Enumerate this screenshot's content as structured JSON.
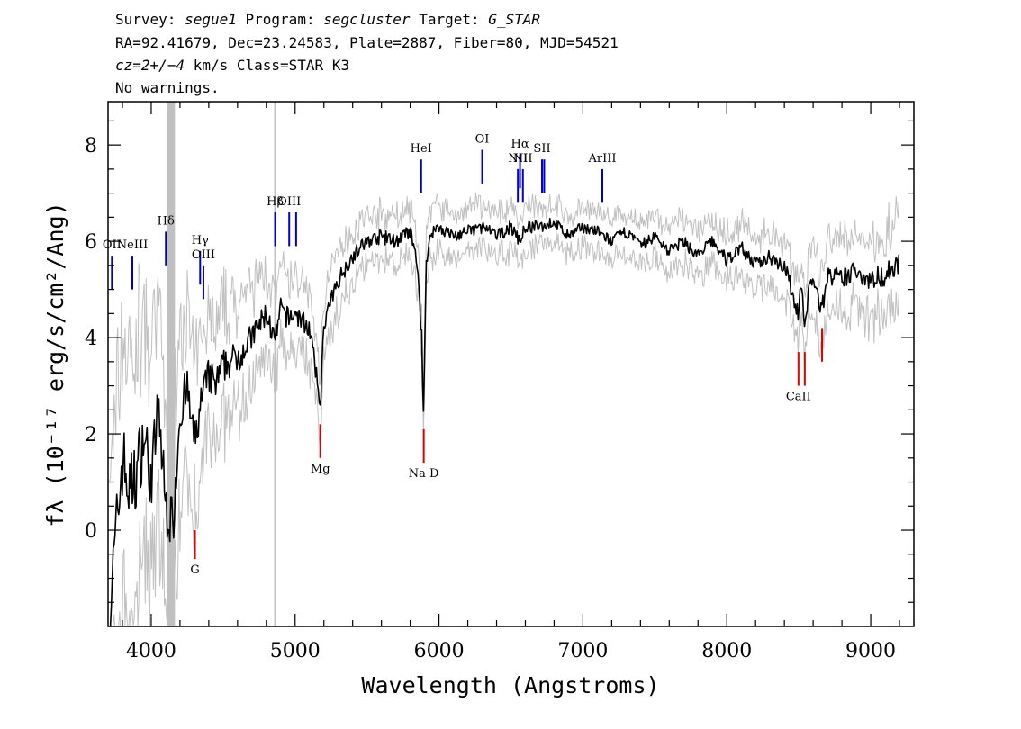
{
  "header": {
    "survey_label": "Survey:",
    "survey": "segue1",
    "program_label": "Program:",
    "program": "segcluster",
    "target_label": "Target:",
    "target": "G_STAR",
    "line2": "RA=92.41679, Dec=23.24583, Plate=2887, Fiber=80, MJD=54521",
    "cz": "cz=2+/−4",
    "cz_rest": " km/s Class=STAR K3",
    "warnings": "No warnings."
  },
  "chart_data": {
    "type": "line",
    "xlabel": "Wavelength (Angstroms)",
    "ylabel": "fλ (10⁻¹⁷ erg/s/cm²/Ang)",
    "xlim": [
      3700,
      9300
    ],
    "ylim": [
      -2.0,
      8.9
    ],
    "xticks": [
      4000,
      5000,
      6000,
      7000,
      8000,
      9000
    ],
    "yticks": [
      0,
      2,
      4,
      6,
      8
    ],
    "colors": {
      "flux": "#000000",
      "error": "#c0c0c0",
      "emission": "#0000cc",
      "absorption": "#dd0000",
      "mask": "#c0c0c0"
    },
    "masked_band": [
      4110,
      4165
    ],
    "sky_line": 4861,
    "series": [
      {
        "name": "flux",
        "x": [
          3710,
          3800,
          3850,
          3900,
          3950,
          4000,
          4050,
          4100,
          4150,
          4200,
          4250,
          4300,
          4350,
          4400,
          4450,
          4500,
          4600,
          4700,
          4800,
          4861,
          4900,
          4950,
          5000,
          5100,
          5175,
          5200,
          5300,
          5400,
          5500,
          5600,
          5700,
          5800,
          5850,
          5880,
          5893,
          5910,
          5950,
          6000,
          6100,
          6200,
          6300,
          6400,
          6500,
          6563,
          6600,
          6700,
          6800,
          6900,
          7000,
          7100,
          7200,
          7300,
          7400,
          7500,
          7600,
          7700,
          7800,
          7900,
          8000,
          8100,
          8200,
          8300,
          8400,
          8498,
          8520,
          8542,
          8580,
          8662,
          8700,
          8800,
          8900,
          9000,
          9100,
          9200
        ],
        "y": [
          -1.8,
          1.5,
          0.8,
          1.2,
          2.0,
          1.0,
          2.6,
          0.5,
          0.1,
          2.5,
          2.9,
          1.8,
          2.7,
          3.2,
          3.0,
          3.4,
          3.6,
          4.0,
          4.5,
          3.9,
          4.6,
          4.4,
          4.5,
          4.2,
          2.6,
          4.3,
          5.2,
          5.7,
          6.0,
          6.1,
          6.0,
          6.2,
          5.5,
          4.0,
          2.3,
          5.6,
          6.2,
          6.3,
          6.1,
          6.2,
          6.3,
          6.1,
          6.3,
          6.0,
          6.3,
          6.3,
          6.4,
          6.1,
          6.3,
          6.2,
          6.0,
          6.2,
          5.9,
          6.1,
          5.8,
          6.0,
          5.7,
          6.0,
          5.6,
          5.9,
          5.5,
          5.7,
          5.5,
          4.5,
          5.2,
          4.1,
          5.3,
          4.6,
          5.3,
          5.2,
          5.4,
          5.2,
          5.3,
          5.6
        ]
      },
      {
        "name": "error",
        "x": [
          3710,
          3800,
          3900,
          4000,
          4100,
          4200,
          4300,
          4400,
          4500,
          4700,
          4900,
          5100,
          5300,
          5500,
          5700,
          5900,
          6100,
          6300,
          6500,
          6700,
          6900,
          7100,
          7300,
          7500,
          7700,
          7900,
          8100,
          8300,
          8500,
          8700,
          8900,
          9100,
          9200
        ],
        "y": [
          2.5,
          2.8,
          2.6,
          2.2,
          2.0,
          1.8,
          1.5,
          1.3,
          1.2,
          1.0,
          0.8,
          0.7,
          0.6,
          0.5,
          0.5,
          0.5,
          0.45,
          0.45,
          0.45,
          0.4,
          0.4,
          0.4,
          0.4,
          0.45,
          0.45,
          0.5,
          0.5,
          0.55,
          0.6,
          0.7,
          0.75,
          0.8,
          0.9
        ]
      }
    ],
    "emission_lines": [
      {
        "label": "OII",
        "wave": 3727,
        "y_top": 5.7,
        "y_bot": 5.0,
        "label_y": 5.85
      },
      {
        "label": "NeIII",
        "wave": 3869,
        "y_top": 5.7,
        "y_bot": 5.0,
        "label_y": 5.85
      },
      {
        "label": "Hδ",
        "wave": 4102,
        "y_top": 6.2,
        "y_bot": 5.5,
        "label_y": 6.35
      },
      {
        "label": "Hγ",
        "wave": 4340,
        "y_top": 5.8,
        "y_bot": 5.1,
        "label_y": 5.95
      },
      {
        "label": "OIII",
        "wave": 4363,
        "y_top": 5.5,
        "y_bot": 4.8,
        "label_y": 5.65
      },
      {
        "label": "Hβ",
        "wave": 4861,
        "y_top": 6.6,
        "y_bot": 5.9,
        "label_y": 6.75
      },
      {
        "label": "OIII",
        "wave": 4959,
        "y_top": 6.6,
        "y_bot": 5.9,
        "label_y": 6.75
      },
      {
        "label": "",
        "wave": 5007,
        "y_top": 6.6,
        "y_bot": 5.9,
        "label_y": 6.75
      },
      {
        "label": "HeI",
        "wave": 5876,
        "y_top": 7.7,
        "y_bot": 7.0,
        "label_y": 7.85
      },
      {
        "label": "OI",
        "wave": 6300,
        "y_top": 7.9,
        "y_bot": 7.2,
        "label_y": 8.05
      },
      {
        "label": "NII",
        "wave": 6548,
        "y_top": 7.5,
        "y_bot": 6.8,
        "label_y": 7.65
      },
      {
        "label": "Hα",
        "wave": 6563,
        "y_top": 7.8,
        "y_bot": 7.1,
        "label_y": 7.95
      },
      {
        "label": "NII",
        "wave": 6583,
        "y_top": 7.5,
        "y_bot": 6.8,
        "label_y": 7.65
      },
      {
        "label": "SII",
        "wave": 6716,
        "y_top": 7.7,
        "y_bot": 7.0,
        "label_y": 7.85
      },
      {
        "label": "",
        "wave": 6731,
        "y_top": 7.7,
        "y_bot": 7.0,
        "label_y": 7.85
      },
      {
        "label": "ArIII",
        "wave": 7135,
        "y_top": 7.5,
        "y_bot": 6.8,
        "label_y": 7.65
      }
    ],
    "absorption_lines": [
      {
        "label": "G",
        "wave": 4304,
        "y_top": 0.0,
        "y_bot": -0.6,
        "label_y": -0.9
      },
      {
        "label": "Mg",
        "wave": 5175,
        "y_top": 2.2,
        "y_bot": 1.5,
        "label_y": 1.2
      },
      {
        "label": "Na D",
        "wave": 5894,
        "y_top": 2.1,
        "y_bot": 1.4,
        "label_y": 1.1
      },
      {
        "label": "CaII",
        "wave": 8498,
        "y_top": 3.7,
        "y_bot": 3.0,
        "label_y": 2.7
      },
      {
        "label": "",
        "wave": 8542,
        "y_top": 3.7,
        "y_bot": 3.0,
        "label_y": 2.7
      },
      {
        "label": "",
        "wave": 8662,
        "y_top": 4.2,
        "y_bot": 3.5,
        "label_y": 3.2
      }
    ]
  }
}
